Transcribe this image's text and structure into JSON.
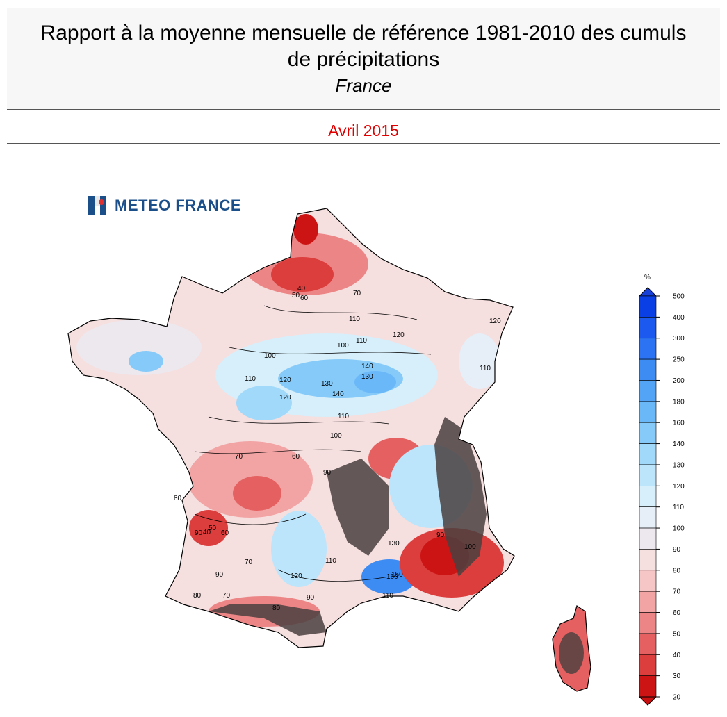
{
  "header": {
    "title_line1": "Rapport à la moyenne mensuelle de référence 1981-2010 des cumuls",
    "title_line2": "de précipitations",
    "subtitle": "France",
    "date": "Avril 2015"
  },
  "logo": {
    "text": "METEO FRANCE",
    "icon": "meteo-france-logo-icon",
    "color": "#1b4f8a"
  },
  "legend": {
    "unit": "%",
    "ticks": [
      "500",
      "400",
      "300",
      "250",
      "200",
      "180",
      "160",
      "140",
      "130",
      "120",
      "110",
      "100",
      "90",
      "80",
      "70",
      "60",
      "50",
      "40",
      "30",
      "20"
    ],
    "colors": [
      "#0b3fe6",
      "#1b59ef",
      "#2b73f2",
      "#3d8cf4",
      "#53a3f7",
      "#6bb8f9",
      "#85caf9",
      "#a0d9fa",
      "#bce5fb",
      "#d6effa",
      "#e6eef8",
      "#ece8ee",
      "#f6dfdf",
      "#f6c5c5",
      "#f2a4a4",
      "#ec8585",
      "#e56161",
      "#dc3d3d",
      "#cc1414"
    ],
    "color_above": "#1640d8",
    "color_below": "#c81010"
  },
  "map": {
    "region": "France",
    "relief_color": "#4a4040",
    "contour_labels": [
      "50",
      "60",
      "40",
      "70",
      "110",
      "120",
      "100",
      "110",
      "140",
      "130",
      "140",
      "120",
      "100",
      "110",
      "120",
      "130",
      "110",
      "100",
      "90",
      "60",
      "70",
      "80",
      "90",
      "60",
      "50",
      "40",
      "70",
      "90",
      "80",
      "110",
      "120",
      "130",
      "150",
      "160",
      "110",
      "90",
      "80",
      "70",
      "90",
      "100",
      "120",
      "110"
    ]
  }
}
